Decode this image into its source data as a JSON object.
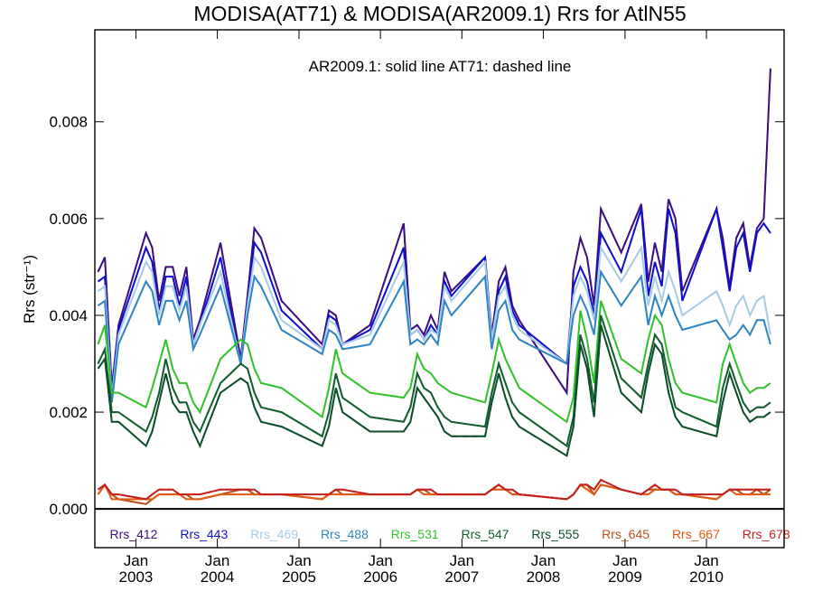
{
  "chart_data": {
    "type": "line",
    "title": "MODISA(AT71) & MODISA(AR2009.1)  Rrs for AtlN55",
    "subtitle": "AR2009.1: solid line   AT71: dashed line",
    "ylabel": "Rrs (str⁻¹)",
    "xlabel": "",
    "ylim": [
      -0.0008,
      0.0099
    ],
    "xlim": [
      "2002-07-01",
      "2010-12-15"
    ],
    "yticks": [
      0.0,
      0.002,
      0.004,
      0.006,
      0.008
    ],
    "ytick_labels": [
      "0.000",
      "0.002",
      "0.004",
      "0.006",
      "0.008"
    ],
    "xtick_dates": [
      "2003-01-01",
      "2004-01-01",
      "2005-01-01",
      "2006-01-01",
      "2007-01-01",
      "2008-01-01",
      "2009-01-01",
      "2010-01-01"
    ],
    "xtick_month_labels": [
      "Jan",
      "Jan",
      "Jan",
      "Jan",
      "Jan",
      "Jan",
      "Jan",
      "Jan"
    ],
    "xtick_year_labels": [
      "2003",
      "2004",
      "2005",
      "2006",
      "2007",
      "2008",
      "2009",
      "2010"
    ],
    "zero_line": true,
    "grid": false,
    "legend_position": "bottom",
    "line_styles": {
      "AR2009.1": "solid",
      "AT71": "dashed"
    },
    "x": [
      "2002-07-15",
      "2002-08-15",
      "2002-09-15",
      "2002-10-15",
      "2003-02-15",
      "2003-03-15",
      "2003-04-15",
      "2003-05-15",
      "2003-06-15",
      "2003-07-15",
      "2003-08-15",
      "2003-09-15",
      "2003-10-15",
      "2004-01-15",
      "2004-04-15",
      "2004-05-15",
      "2004-06-15",
      "2004-07-15",
      "2004-10-15",
      "2005-04-15",
      "2005-05-15",
      "2005-06-15",
      "2005-07-15",
      "2005-11-15",
      "2006-04-15",
      "2006-05-15",
      "2006-06-15",
      "2006-07-15",
      "2006-08-15",
      "2006-09-15",
      "2006-10-15",
      "2006-11-15",
      "2007-04-15",
      "2007-05-15",
      "2007-06-15",
      "2007-07-15",
      "2007-08-15",
      "2007-09-15",
      "2008-04-15",
      "2008-05-15",
      "2008-06-15",
      "2008-07-15",
      "2008-08-15",
      "2008-09-15",
      "2008-12-15",
      "2009-03-15",
      "2009-04-15",
      "2009-05-15",
      "2009-06-15",
      "2009-07-15",
      "2009-08-15",
      "2009-09-15",
      "2010-02-15",
      "2010-03-15",
      "2010-04-15",
      "2010-05-15",
      "2010-06-15",
      "2010-07-15",
      "2010-08-15",
      "2010-09-15",
      "2010-10-15"
    ],
    "series": [
      {
        "name": "Rrs_412",
        "color": "#3d0f80",
        "values": [
          0.0049,
          0.0052,
          0.0025,
          0.0038,
          0.0057,
          0.0054,
          0.0043,
          0.005,
          0.005,
          0.0044,
          0.005,
          0.0035,
          0.0039,
          0.0055,
          0.0031,
          0.0044,
          0.0058,
          0.0056,
          0.0043,
          0.0034,
          0.0041,
          0.004,
          0.0034,
          0.0038,
          0.0059,
          0.0037,
          0.0038,
          0.0036,
          0.004,
          0.0037,
          0.0049,
          0.0045,
          0.0052,
          0.0036,
          0.0047,
          0.005,
          0.0042,
          0.0039,
          0.0024,
          0.0049,
          0.0056,
          0.0052,
          0.0042,
          0.0062,
          0.0053,
          0.0063,
          0.0047,
          0.0055,
          0.0049,
          0.0064,
          0.006,
          0.0045,
          0.0062,
          0.0056,
          0.0046,
          0.0056,
          0.0059,
          0.005,
          0.0058,
          0.006,
          0.0091
        ]
      },
      {
        "name": "Rrs_443",
        "color": "#1010cc",
        "values": [
          0.0047,
          0.0048,
          0.0024,
          0.0037,
          0.0054,
          0.0051,
          0.0041,
          0.0048,
          0.0048,
          0.0042,
          0.0048,
          0.0034,
          0.0038,
          0.0052,
          0.003,
          0.0043,
          0.0055,
          0.0053,
          0.0041,
          0.0033,
          0.004,
          0.0039,
          0.0034,
          0.0037,
          0.0054,
          0.0036,
          0.0037,
          0.0035,
          0.0038,
          0.0036,
          0.0047,
          0.0044,
          0.0052,
          0.0035,
          0.0045,
          0.0048,
          0.0041,
          0.0038,
          0.003,
          0.0046,
          0.005,
          0.0047,
          0.004,
          0.0057,
          0.0049,
          0.0062,
          0.0044,
          0.0051,
          0.0046,
          0.0062,
          0.0057,
          0.0043,
          0.0062,
          0.0054,
          0.0045,
          0.0054,
          0.0057,
          0.0049,
          0.0057,
          0.0059,
          0.0057
        ]
      },
      {
        "name": "Rrs_469",
        "color": "#a6cce6",
        "values": [
          0.0045,
          0.0046,
          0.0023,
          0.0036,
          0.0051,
          0.0049,
          0.004,
          0.0046,
          0.0046,
          0.0041,
          0.0046,
          0.0034,
          0.0038,
          0.0049,
          0.003,
          0.0042,
          0.0052,
          0.005,
          0.0039,
          0.0033,
          0.0039,
          0.0038,
          0.0034,
          0.0036,
          0.0051,
          0.0036,
          0.0037,
          0.0035,
          0.0037,
          0.0036,
          0.0046,
          0.0043,
          0.0051,
          0.0035,
          0.0044,
          0.0046,
          0.004,
          0.0037,
          0.003,
          0.0044,
          0.0048,
          0.0045,
          0.0039,
          0.0054,
          0.0047,
          0.0054,
          0.0042,
          0.0048,
          0.0043,
          0.0049,
          0.0045,
          0.004,
          0.0045,
          0.0042,
          0.0038,
          0.0042,
          0.0044,
          0.004,
          0.0043,
          0.0044,
          0.0036
        ]
      },
      {
        "name": "Rrs_488",
        "color": "#2f86c2",
        "values": [
          0.0042,
          0.0043,
          0.0022,
          0.0034,
          0.0047,
          0.0045,
          0.0038,
          0.0043,
          0.0043,
          0.0039,
          0.0043,
          0.0033,
          0.0036,
          0.0046,
          0.003,
          0.004,
          0.0048,
          0.0046,
          0.0037,
          0.0032,
          0.0037,
          0.0036,
          0.0033,
          0.0034,
          0.0047,
          0.0034,
          0.0035,
          0.0034,
          0.0036,
          0.0034,
          0.0043,
          0.004,
          0.0048,
          0.0033,
          0.0041,
          0.0043,
          0.0037,
          0.0035,
          0.003,
          0.004,
          0.0044,
          0.0041,
          0.0036,
          0.0049,
          0.0042,
          0.0048,
          0.0038,
          0.0044,
          0.004,
          0.0044,
          0.004,
          0.0037,
          0.0039,
          0.0037,
          0.0035,
          0.0036,
          0.0038,
          0.0036,
          0.0039,
          0.0039,
          0.0034
        ]
      },
      {
        "name": "Rrs_531",
        "color": "#33c22b",
        "values": [
          0.0034,
          0.0038,
          0.0024,
          0.0024,
          0.0021,
          0.0025,
          0.003,
          0.0035,
          0.0029,
          0.0026,
          0.0026,
          0.0022,
          0.002,
          0.0031,
          0.0035,
          0.0034,
          0.0029,
          0.0026,
          0.0025,
          0.0019,
          0.0025,
          0.0033,
          0.0028,
          0.0024,
          0.0023,
          0.0025,
          0.0032,
          0.0029,
          0.0028,
          0.0026,
          0.0025,
          0.0024,
          0.0022,
          0.0028,
          0.0035,
          0.0031,
          0.0028,
          0.0025,
          0.0018,
          0.0023,
          0.0041,
          0.0035,
          0.0026,
          0.0043,
          0.0031,
          0.0028,
          0.0035,
          0.004,
          0.0038,
          0.0031,
          0.0026,
          0.0024,
          0.0022,
          0.003,
          0.0034,
          0.003,
          0.0026,
          0.0024,
          0.0025,
          0.0025,
          0.0026
        ]
      },
      {
        "name": "Rrs_547",
        "color": "#115f2e",
        "values": [
          0.003,
          0.0033,
          0.002,
          0.002,
          0.0016,
          0.0019,
          0.0024,
          0.0031,
          0.0025,
          0.0022,
          0.0022,
          0.0018,
          0.0016,
          0.0026,
          0.003,
          0.0029,
          0.0024,
          0.0021,
          0.002,
          0.0015,
          0.002,
          0.0028,
          0.0023,
          0.0019,
          0.0018,
          0.0021,
          0.0028,
          0.0025,
          0.0024,
          0.0021,
          0.0019,
          0.0018,
          0.0017,
          0.0024,
          0.003,
          0.0026,
          0.0022,
          0.002,
          0.0013,
          0.0019,
          0.0036,
          0.0031,
          0.0022,
          0.004,
          0.0027,
          0.0023,
          0.003,
          0.0036,
          0.0034,
          0.0027,
          0.0021,
          0.002,
          0.0017,
          0.0025,
          0.003,
          0.0026,
          0.0022,
          0.002,
          0.0021,
          0.0021,
          0.0022
        ]
      },
      {
        "name": "Rrs_555",
        "color": "#0b4f2a",
        "values": [
          0.0029,
          0.0031,
          0.0018,
          0.0018,
          0.0013,
          0.0016,
          0.0022,
          0.0028,
          0.0022,
          0.002,
          0.002,
          0.0016,
          0.0013,
          0.0024,
          0.0027,
          0.0026,
          0.0021,
          0.0018,
          0.0017,
          0.0013,
          0.0017,
          0.0025,
          0.002,
          0.0016,
          0.0016,
          0.0018,
          0.0025,
          0.0023,
          0.0021,
          0.0019,
          0.0016,
          0.0015,
          0.0015,
          0.0022,
          0.0028,
          0.0023,
          0.0019,
          0.0017,
          0.0011,
          0.0017,
          0.0034,
          0.0029,
          0.0019,
          0.0038,
          0.0024,
          0.002,
          0.0028,
          0.0034,
          0.0032,
          0.0024,
          0.0019,
          0.0017,
          0.0015,
          0.0022,
          0.0028,
          0.0024,
          0.002,
          0.0018,
          0.0019,
          0.0019,
          0.002
        ]
      },
      {
        "name": "Rrs_645",
        "color": "#b9501e",
        "values": [
          0.0003,
          0.0005,
          0.0003,
          0.0002,
          0.0001,
          0.0002,
          0.0003,
          0.0003,
          0.0003,
          0.0003,
          0.0003,
          0.0002,
          0.0002,
          0.0003,
          0.0004,
          0.0004,
          0.0003,
          0.0003,
          0.0003,
          0.0002,
          0.0003,
          0.0004,
          0.0003,
          0.0003,
          0.0003,
          0.0003,
          0.0004,
          0.0004,
          0.0003,
          0.0003,
          0.0003,
          0.0003,
          0.0003,
          0.0004,
          0.0005,
          0.0004,
          0.0003,
          0.0003,
          0.0002,
          0.0003,
          0.0005,
          0.0005,
          0.0003,
          0.0005,
          0.0004,
          0.0003,
          0.0004,
          0.0004,
          0.0004,
          0.0004,
          0.0003,
          0.0003,
          0.0002,
          0.0003,
          0.0004,
          0.0004,
          0.0003,
          0.0003,
          0.0004,
          0.0003,
          0.0004
        ]
      },
      {
        "name": "Rrs_667",
        "color": "#e05a10",
        "values": [
          0.0003,
          0.0005,
          0.0002,
          0.0002,
          0.0002,
          0.0002,
          0.0003,
          0.0003,
          0.0003,
          0.0003,
          0.0002,
          0.0002,
          0.0002,
          0.0003,
          0.0003,
          0.0003,
          0.0003,
          0.0003,
          0.0003,
          0.0002,
          0.0003,
          0.0003,
          0.0003,
          0.0003,
          0.0003,
          0.0003,
          0.0004,
          0.0003,
          0.0003,
          0.0003,
          0.0003,
          0.0003,
          0.0003,
          0.0004,
          0.0004,
          0.0004,
          0.0003,
          0.0003,
          0.0002,
          0.0003,
          0.0005,
          0.0004,
          0.0003,
          0.0005,
          0.0004,
          0.0003,
          0.0003,
          0.0004,
          0.0004,
          0.0004,
          0.0003,
          0.0003,
          0.0002,
          0.0003,
          0.0004,
          0.0003,
          0.0003,
          0.0003,
          0.0003,
          0.0003,
          0.0003
        ]
      },
      {
        "name": "Rrs_678",
        "color": "#c41f1f",
        "values": [
          0.0004,
          0.0005,
          0.0003,
          0.0003,
          0.0002,
          0.0003,
          0.0004,
          0.0004,
          0.0004,
          0.0003,
          0.0003,
          0.0003,
          0.0003,
          0.0004,
          0.0004,
          0.0004,
          0.0004,
          0.0003,
          0.0003,
          0.0003,
          0.0003,
          0.0004,
          0.0004,
          0.0003,
          0.0003,
          0.0003,
          0.0004,
          0.0004,
          0.0004,
          0.0003,
          0.0003,
          0.0003,
          0.0003,
          0.0004,
          0.0005,
          0.0004,
          0.0004,
          0.0003,
          0.0002,
          0.0003,
          0.0005,
          0.0005,
          0.0004,
          0.0006,
          0.0004,
          0.0003,
          0.0004,
          0.0005,
          0.0004,
          0.0004,
          0.0004,
          0.0003,
          0.0003,
          0.0003,
          0.0004,
          0.0004,
          0.0004,
          0.0004,
          0.0004,
          0.0004,
          0.0004
        ]
      }
    ]
  }
}
